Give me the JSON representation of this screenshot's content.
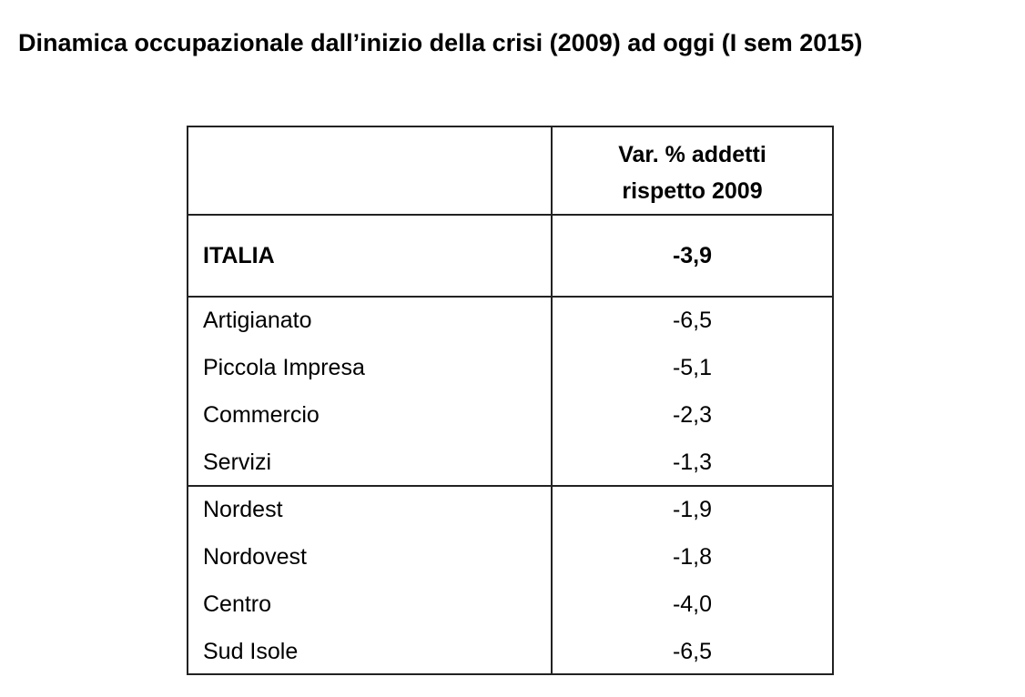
{
  "title": "Dinamica occupazionale dall’inizio della crisi (2009) ad oggi (I sem 2015)",
  "table": {
    "header_lines": [
      "Var. % addetti",
      "rispetto 2009"
    ],
    "groups": [
      {
        "bold": true,
        "rows": [
          {
            "label": "ITALIA",
            "value": "-3,9"
          }
        ]
      },
      {
        "bold": false,
        "rows": [
          {
            "label": "Artigianato",
            "value": "-6,5"
          },
          {
            "label": "Piccola Impresa",
            "value": "-5,1"
          },
          {
            "label": "Commercio",
            "value": "-2,3"
          },
          {
            "label": "Servizi",
            "value": "-1,3"
          }
        ]
      },
      {
        "bold": false,
        "rows": [
          {
            "label": "Nordest",
            "value": "-1,9"
          },
          {
            "label": "Nordovest",
            "value": "-1,8"
          },
          {
            "label": "Centro",
            "value": "-4,0"
          },
          {
            "label": "Sud Isole",
            "value": "-6,5"
          }
        ]
      }
    ]
  }
}
